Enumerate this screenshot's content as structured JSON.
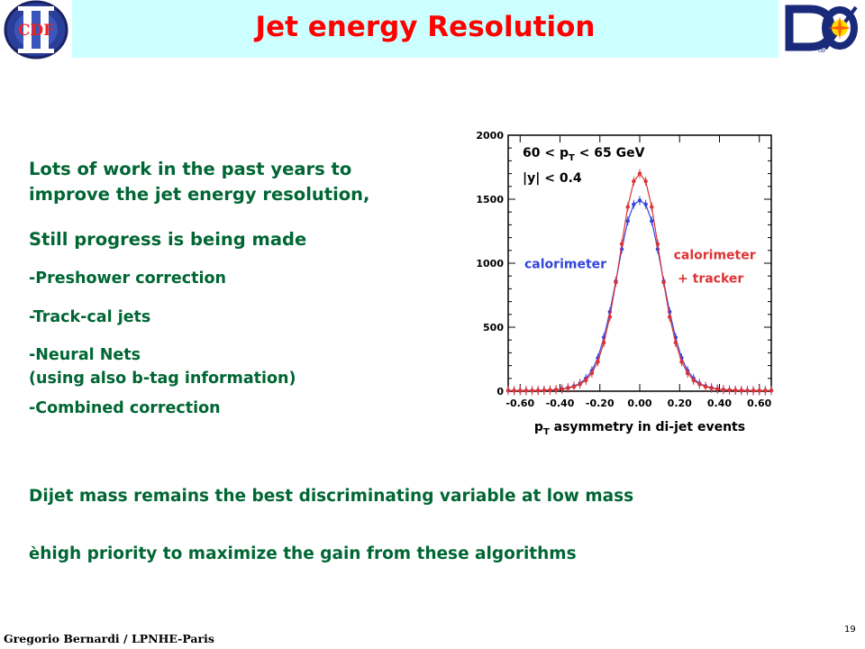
{
  "slide": {
    "title": "Jet energy Resolution",
    "footer": "Gregorio Bernardi / LPNHE-Paris",
    "page_number": "19",
    "logos": {
      "left": "CDF",
      "right": "DØ"
    },
    "colors": {
      "title": "#ff0000",
      "body_text": "#006633",
      "banner": "#ccffff"
    }
  },
  "content": {
    "line1": "Lots of work in the past years to",
    "line2": "improve the jet energy resolution,",
    "progress": "Still progress is being made",
    "items": [
      "-Preshower correction",
      "-Track-cal jets",
      "-Neural Nets",
      "(using also b-tag information)",
      "-Combined correction"
    ],
    "dijet": "Dijet mass remains the best discriminating variable at low mass",
    "priority_arrow": "è",
    "priority": "high priority to maximize the gain from these algorithms"
  },
  "chart_data": {
    "type": "scatter",
    "xlabel": "p_T asymmetry in di-jet events",
    "xlim": [
      -0.66,
      0.66
    ],
    "ylim": [
      0,
      2000
    ],
    "x_ticks": [
      "-0.60",
      "-0.40",
      "-0.20",
      "0.00",
      "0.20",
      "0.40",
      "0.60"
    ],
    "y_ticks": [
      "0",
      "500",
      "1000",
      "1500",
      "2000"
    ],
    "annotations": [
      "60 < p_T < 65 GeV",
      "|y| < 0.4"
    ],
    "series": [
      {
        "name": "calorimeter",
        "color": "#3344dd",
        "x": [
          -0.66,
          -0.63,
          -0.6,
          -0.57,
          -0.54,
          -0.51,
          -0.48,
          -0.45,
          -0.42,
          -0.39,
          -0.36,
          -0.33,
          -0.3,
          -0.27,
          -0.24,
          -0.21,
          -0.18,
          -0.15,
          -0.12,
          -0.09,
          -0.06,
          -0.03,
          0.0,
          0.03,
          0.06,
          0.09,
          0.12,
          0.15,
          0.18,
          0.21,
          0.24,
          0.27,
          0.3,
          0.33,
          0.36,
          0.39,
          0.42,
          0.45,
          0.48,
          0.51,
          0.54,
          0.57,
          0.6,
          0.63,
          0.66
        ],
        "values": [
          5,
          5,
          5,
          5,
          5,
          6,
          7,
          9,
          12,
          18,
          27,
          40,
          60,
          100,
          160,
          260,
          420,
          620,
          860,
          1110,
          1330,
          1460,
          1490,
          1460,
          1330,
          1110,
          860,
          620,
          420,
          260,
          160,
          100,
          60,
          40,
          27,
          18,
          12,
          9,
          7,
          6,
          5,
          5,
          5,
          5,
          5
        ]
      },
      {
        "name": "calorimeter + tracker",
        "color": "#dd3333",
        "x": [
          -0.66,
          -0.63,
          -0.6,
          -0.57,
          -0.54,
          -0.51,
          -0.48,
          -0.45,
          -0.42,
          -0.39,
          -0.36,
          -0.33,
          -0.3,
          -0.27,
          -0.24,
          -0.21,
          -0.18,
          -0.15,
          -0.12,
          -0.09,
          -0.06,
          -0.03,
          0.0,
          0.03,
          0.06,
          0.09,
          0.12,
          0.15,
          0.18,
          0.21,
          0.24,
          0.27,
          0.3,
          0.33,
          0.36,
          0.39,
          0.42,
          0.45,
          0.48,
          0.51,
          0.54,
          0.57,
          0.6,
          0.63,
          0.66
        ],
        "values": [
          5,
          5,
          5,
          5,
          5,
          6,
          7,
          9,
          12,
          16,
          24,
          35,
          55,
          85,
          140,
          230,
          380,
          580,
          850,
          1150,
          1440,
          1640,
          1700,
          1640,
          1440,
          1150,
          850,
          580,
          380,
          230,
          140,
          85,
          55,
          35,
          24,
          16,
          12,
          9,
          7,
          6,
          5,
          5,
          5,
          5,
          5
        ]
      }
    ]
  }
}
